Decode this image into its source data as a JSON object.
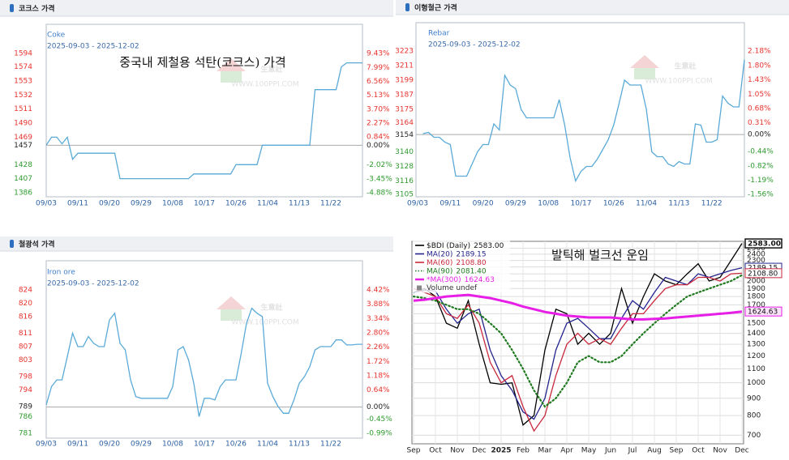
{
  "chart_data": [
    {
      "type": "line",
      "title": "코크스 가격",
      "subtitle": "2025-09-03 - 2025-12-02",
      "annotation": "중국내 제철용 석탄(코크스) 가격",
      "watermark": "生意社",
      "watermark_url": "WWW.100PPI.COM",
      "categories": [
        "09/03",
        null,
        null,
        null,
        null,
        null,
        "09/11",
        null,
        null,
        null,
        null,
        null,
        "09/20",
        null,
        null,
        null,
        null,
        null,
        "09/29",
        null,
        null,
        null,
        null,
        null,
        "10/08",
        null,
        null,
        null,
        null,
        null,
        "10/17",
        null,
        null,
        null,
        null,
        null,
        "10/26",
        null,
        null,
        null,
        null,
        null,
        "11/04",
        null,
        null,
        null,
        null,
        null,
        "11/13",
        null,
        null,
        null,
        null,
        null,
        "11/22",
        null,
        null,
        null,
        null,
        null,
        null
      ],
      "series": [
        {
          "name": "Coke",
          "color": "#5aaad8",
          "values": [
            1457,
            1469,
            1469,
            1459,
            1469,
            1436,
            1445,
            1445,
            1445,
            1445,
            1445,
            1445,
            1445,
            1445,
            1407,
            1407,
            1407,
            1407,
            1407,
            1407,
            1407,
            1407,
            1407,
            1407,
            1407,
            1407,
            1407,
            1407,
            1414,
            1414,
            1414,
            1414,
            1414,
            1414,
            1414,
            1414,
            1428,
            1428,
            1428,
            1428,
            1428,
            1457,
            1457,
            1457,
            1457,
            1457,
            1457,
            1457,
            1457,
            1457,
            1457,
            1540,
            1540,
            1540,
            1540,
            1540,
            1574,
            1580,
            1580,
            1580,
            1580
          ]
        }
      ],
      "ylim": [
        1386,
        1594
      ],
      "yticks": [
        1594,
        1574,
        1553,
        1532,
        1511,
        1490,
        1469,
        1457,
        1428,
        1407,
        1386
      ],
      "y2lim": [
        -4.88,
        9.43
      ],
      "y2ticks": [
        {
          "value": 9.43,
          "label": "9.43%"
        },
        {
          "value": 7.99,
          "label": "7.99%"
        },
        {
          "value": 6.56,
          "label": "6.56%"
        },
        {
          "value": 5.13,
          "label": "5.13%"
        },
        {
          "value": 3.7,
          "label": "3.70%"
        },
        {
          "value": 2.27,
          "label": "2.27%"
        },
        {
          "value": 0.84,
          "label": "0.84%"
        },
        {
          "value": 0,
          "label": "0.00%"
        },
        {
          "value": -2.02,
          "label": "-2.02%"
        },
        {
          "value": -3.45,
          "label": "-3.45%"
        },
        {
          "value": -4.88,
          "label": "-4.88%"
        }
      ],
      "grid": false
    },
    {
      "type": "line",
      "title": "이형철근 가격",
      "subtitle": "2025-09-03 - 2025-12-02",
      "watermark": "生意社",
      "watermark_url": "WWW.100PPI.COM",
      "categories": [
        "09/03",
        null,
        null,
        null,
        null,
        null,
        "09/11",
        null,
        null,
        null,
        null,
        null,
        "09/20",
        null,
        null,
        null,
        null,
        null,
        "09/29",
        null,
        null,
        null,
        null,
        null,
        "10/08",
        null,
        null,
        null,
        null,
        null,
        "10/17",
        null,
        null,
        null,
        null,
        null,
        "10/26",
        null,
        null,
        null,
        null,
        null,
        "11/04",
        null,
        null,
        null,
        null,
        null,
        "11/13",
        null,
        null,
        null,
        null,
        null,
        "11/22",
        null,
        null,
        null,
        null,
        null,
        null
      ],
      "series": [
        {
          "name": "Rebar",
          "color": "#5aaad8",
          "values": [
            null,
            3155,
            3156,
            3152,
            3152,
            3148,
            3146,
            3120,
            3120,
            3120,
            3130,
            3140,
            3146,
            3146,
            3163,
            3158,
            3203,
            3195,
            3192,
            3175,
            3168,
            3168,
            3168,
            3168,
            3168,
            3168,
            3183,
            3162,
            3135,
            3116,
            3124,
            3128,
            3128,
            3134,
            3142,
            3150,
            3162,
            3180,
            3199,
            3195,
            3195,
            3195,
            3175,
            3140,
            3136,
            3136,
            3130,
            3128,
            3132,
            3130,
            3130,
            3163,
            3162,
            3148,
            3148,
            3150,
            3186,
            3180,
            3177,
            3177,
            3216
          ]
        }
      ],
      "ylim": [
        3105,
        3223
      ],
      "yticks": [
        3223,
        3211,
        3199,
        3187,
        3175,
        3164,
        3154,
        3140,
        3128,
        3116,
        3105
      ],
      "y2lim": [
        -1.56,
        2.18
      ],
      "y2ticks": [
        {
          "value": 2.18,
          "label": "2.18%"
        },
        {
          "value": 1.8,
          "label": "1.80%"
        },
        {
          "value": 1.43,
          "label": "1.43%"
        },
        {
          "value": 1.05,
          "label": "1.05%"
        },
        {
          "value": 0.68,
          "label": "0.68%"
        },
        {
          "value": 0.31,
          "label": "0.31%"
        },
        {
          "value": 0,
          "label": "0.00%"
        },
        {
          "value": -0.44,
          "label": "-0.44%"
        },
        {
          "value": -0.82,
          "label": "-0.82%"
        },
        {
          "value": -1.19,
          "label": "-1.19%"
        },
        {
          "value": -1.56,
          "label": "-1.56%"
        }
      ],
      "grid": false
    },
    {
      "type": "line",
      "title": "철광석 가격",
      "subtitle": "2025-09-03 - 2025-12-02",
      "watermark": "生意社",
      "watermark_url": "WWW.100PPI.COM",
      "categories": [
        "09/03",
        null,
        null,
        null,
        null,
        null,
        "09/11",
        null,
        null,
        null,
        null,
        null,
        "09/20",
        null,
        null,
        null,
        null,
        null,
        "09/29",
        null,
        null,
        null,
        null,
        null,
        "10/08",
        null,
        null,
        null,
        null,
        null,
        "10/17",
        null,
        null,
        null,
        null,
        null,
        "10/26",
        null,
        null,
        null,
        null,
        null,
        "11/04",
        null,
        null,
        null,
        null,
        null,
        "11/13",
        null,
        null,
        null,
        null,
        null,
        "11/22",
        null,
        null,
        null,
        null,
        null,
        null
      ],
      "series": [
        {
          "name": "Iron ore",
          "color": "#5aaad8",
          "values": [
            789.5,
            795,
            797,
            797,
            804,
            811,
            807,
            807,
            810,
            808,
            807,
            807,
            815,
            817,
            808,
            806,
            797,
            792,
            791.5,
            791.5,
            791.5,
            791.5,
            791.5,
            791.5,
            795,
            806,
            807,
            803,
            796,
            786,
            791.5,
            791.5,
            791,
            795,
            797,
            797,
            797,
            805,
            814,
            818.5,
            817,
            816,
            796,
            792,
            789,
            787,
            787,
            791,
            796,
            798,
            801,
            806,
            807,
            807,
            807,
            809,
            809,
            807.5,
            807.5,
            807.7,
            807.7
          ]
        }
      ],
      "ylim": [
        781,
        824
      ],
      "yticks": [
        824,
        820,
        816,
        811,
        807,
        803,
        798,
        794,
        789,
        786,
        781
      ],
      "y2lim": [
        -0.99,
        4.42
      ],
      "y2ticks": [
        {
          "value": 4.42,
          "label": "4.42%"
        },
        {
          "value": 3.88,
          "label": "3.88%"
        },
        {
          "value": 3.34,
          "label": "3.34%"
        },
        {
          "value": 2.8,
          "label": "2.80%"
        },
        {
          "value": 2.26,
          "label": "2.26%"
        },
        {
          "value": 1.72,
          "label": "1.72%"
        },
        {
          "value": 1.18,
          "label": "1.18%"
        },
        {
          "value": 0.64,
          "label": "0.64%"
        },
        {
          "value": 0,
          "label": "0.00%"
        },
        {
          "value": -0.45,
          "label": "-0.45%"
        },
        {
          "value": -0.99,
          "label": "-0.99%"
        }
      ],
      "grid": false
    },
    {
      "type": "line",
      "annotation": "발틱해 벌크선 운임",
      "volume_note": "Volume undef",
      "categories": [
        "Sep",
        null,
        "Oct",
        null,
        "Nov",
        null,
        "Dec",
        null,
        "2025",
        null,
        "Feb",
        null,
        "Mar",
        null,
        "Apr",
        null,
        "May",
        null,
        "Jun",
        null,
        "Jul",
        null,
        "Aug",
        null,
        "Sep",
        null,
        "Oct",
        null,
        "Nov",
        null,
        "Dec"
      ],
      "series": [
        {
          "name": "$BDI (Daily)",
          "color": "#000000",
          "style": "solid",
          "values": [
            1850,
            1900,
            1800,
            1500,
            1450,
            1750,
            1300,
            1000,
            990,
            1000,
            750,
            800,
            1250,
            1650,
            1600,
            1300,
            1400,
            1300,
            1400,
            1900,
            1500,
            1800,
            2100,
            2000,
            1950,
            2100,
            2250,
            2000,
            2050,
            2300,
            2583
          ],
          "value_labels": [
            null,
            null,
            null,
            null,
            null,
            null,
            null,
            null,
            null,
            null,
            null,
            null,
            null,
            null,
            null,
            null,
            null,
            null,
            null,
            null,
            null,
            null,
            null,
            null,
            null,
            null,
            null,
            null,
            null,
            null,
            "2583.00"
          ]
        },
        {
          "name": "MA(20)",
          "color": "#23238e",
          "style": "solid",
          "values": [
            1850,
            1880,
            1870,
            1650,
            1500,
            1600,
            1650,
            1250,
            1050,
            950,
            820,
            780,
            900,
            1250,
            1500,
            1550,
            1450,
            1350,
            1350,
            1550,
            1750,
            1650,
            1850,
            2050,
            2000,
            1950,
            2100,
            2050,
            2100,
            2150,
            2189.15
          ],
          "value_labels": [
            null,
            null,
            null,
            null,
            null,
            null,
            null,
            null,
            null,
            null,
            null,
            null,
            null,
            null,
            null,
            null,
            null,
            null,
            null,
            null,
            null,
            null,
            null,
            null,
            null,
            null,
            null,
            null,
            null,
            null,
            "2189.15"
          ]
        },
        {
          "name": "MA(60)",
          "color": "#c8283c",
          "style": "solid",
          "values": [
            1900,
            1850,
            1800,
            1600,
            1550,
            1700,
            1500,
            1150,
            1000,
            1050,
            850,
            720,
            800,
            1050,
            1300,
            1400,
            1300,
            1350,
            1300,
            1450,
            1600,
            1600,
            1750,
            1900,
            1950,
            1950,
            2050,
            2050,
            2000,
            2100,
            2108.8
          ],
          "value_labels": [
            null,
            null,
            null,
            null,
            null,
            null,
            null,
            null,
            null,
            null,
            null,
            null,
            null,
            null,
            null,
            null,
            null,
            null,
            null,
            null,
            null,
            null,
            null,
            null,
            null,
            null,
            null,
            null,
            null,
            null,
            "2108.80"
          ]
        },
        {
          "name": "MA(90)",
          "color": "#1f7a1f",
          "style": "dotted",
          "values": [
            1800,
            1780,
            1750,
            1700,
            1650,
            1650,
            1600,
            1500,
            1400,
            1250,
            1100,
            950,
            850,
            900,
            1000,
            1150,
            1200,
            1150,
            1150,
            1200,
            1300,
            1400,
            1500,
            1600,
            1700,
            1800,
            1850,
            1900,
            1950,
            2000,
            2081.4
          ],
          "value_labels": [
            null,
            null,
            null,
            null,
            null,
            null,
            null,
            null,
            null,
            null,
            null,
            null,
            null,
            null,
            null,
            null,
            null,
            null,
            null,
            null,
            null,
            null,
            null,
            null,
            null,
            null,
            null,
            null,
            null,
            null,
            "2081.40"
          ]
        },
        {
          "name": "*MA(300)",
          "color": "#e61ee6",
          "style": "thick",
          "values": [
            1750,
            1760,
            1780,
            1800,
            1810,
            1820,
            1800,
            1780,
            1750,
            1720,
            1680,
            1650,
            1620,
            1600,
            1580,
            1570,
            1560,
            1560,
            1560,
            1550,
            1540,
            1540,
            1545,
            1550,
            1560,
            1570,
            1580,
            1590,
            1600,
            1610,
            1624.63
          ],
          "value_labels": [
            null,
            null,
            null,
            null,
            null,
            null,
            null,
            null,
            null,
            null,
            null,
            null,
            null,
            null,
            null,
            null,
            null,
            null,
            null,
            null,
            null,
            null,
            null,
            null,
            null,
            null,
            null,
            null,
            null,
            null,
            "1624.63"
          ]
        }
      ],
      "log_scale": true,
      "ylim": [
        660,
        2620
      ],
      "yticks": [
        700,
        800,
        900,
        1000,
        1100,
        1200,
        1300,
        1400,
        1500,
        1600,
        1700,
        1800,
        1900,
        2000,
        2100,
        2200,
        2300,
        2400,
        2500
      ],
      "grid": true
    }
  ]
}
